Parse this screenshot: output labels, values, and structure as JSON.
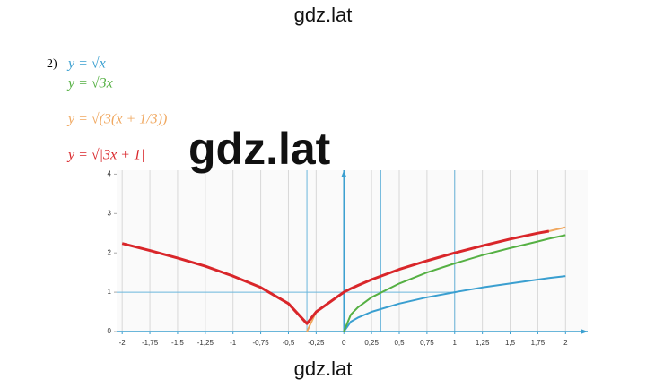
{
  "watermarks": [
    "gdz.lat",
    "gdz.lat",
    "gdz.lat"
  ],
  "exercise_label": "2)",
  "chart_data": {
    "type": "line",
    "x": [
      -2,
      -1.75,
      -1.5,
      -1.25,
      -1,
      -0.75,
      -0.5,
      -0.3333,
      -0.25,
      0,
      0.0625,
      0.125,
      0.25,
      0.5,
      0.75,
      1,
      1.25,
      1.5,
      1.75,
      1.85,
      2
    ],
    "series": [
      {
        "name": "y = √x",
        "color": "#3a9fd0",
        "values": [
          null,
          null,
          null,
          null,
          null,
          null,
          null,
          null,
          null,
          0,
          0.25,
          0.35,
          0.5,
          0.71,
          0.87,
          1,
          1.12,
          1.22,
          1.32,
          1.36,
          1.41
        ]
      },
      {
        "name": "y = √3x",
        "color": "#55b043",
        "values": [
          null,
          null,
          null,
          null,
          null,
          null,
          null,
          null,
          null,
          0,
          0.43,
          0.61,
          0.87,
          1.22,
          1.5,
          1.73,
          1.94,
          2.12,
          2.29,
          2.36,
          2.45
        ]
      },
      {
        "name": "y = √(3(x + 1/3))",
        "color": "#f0a860",
        "values": [
          null,
          null,
          null,
          null,
          null,
          null,
          null,
          0,
          0.5,
          1,
          1.09,
          1.17,
          1.32,
          1.58,
          1.8,
          2,
          2.18,
          2.35,
          2.5,
          2.55,
          2.65
        ]
      },
      {
        "name": "y = √|3x + 1|",
        "color": "#d9262a",
        "values": [
          2.24,
          2.06,
          1.87,
          1.66,
          1.41,
          1.12,
          0.71,
          0.2,
          0.5,
          1,
          1.09,
          1.17,
          1.32,
          1.58,
          1.8,
          2,
          2.18,
          2.35,
          2.5,
          2.55,
          null
        ]
      }
    ],
    "xlim": [
      -2.05,
      2.2
    ],
    "ylim": [
      0,
      4.1
    ],
    "xticks": [
      {
        "value": -2,
        "label": "-2"
      },
      {
        "value": -1.75,
        "label": "-1,75"
      },
      {
        "value": -1.5,
        "label": "-1,5"
      },
      {
        "value": -1.25,
        "label": "-1,25"
      },
      {
        "value": -1,
        "label": "-1"
      },
      {
        "value": -0.75,
        "label": "-0,75"
      },
      {
        "value": -0.5,
        "label": "-0,5"
      },
      {
        "value": -0.25,
        "label": "-0,25"
      },
      0,
      {
        "value": 0.25,
        "label": "0,25"
      },
      {
        "value": 0.5,
        "label": "0,5"
      },
      {
        "value": 0.75,
        "label": "0,75"
      },
      1,
      {
        "value": 1.25,
        "label": "1,25"
      },
      {
        "value": 1.5,
        "label": "1,5"
      },
      {
        "value": 1.75,
        "label": "1,75"
      },
      2
    ],
    "yticks": [
      0,
      1,
      2,
      3,
      4
    ],
    "grid": "x",
    "guides": {
      "x": [
        -0.3333,
        0.3333,
        1
      ],
      "y": [
        1
      ]
    }
  }
}
